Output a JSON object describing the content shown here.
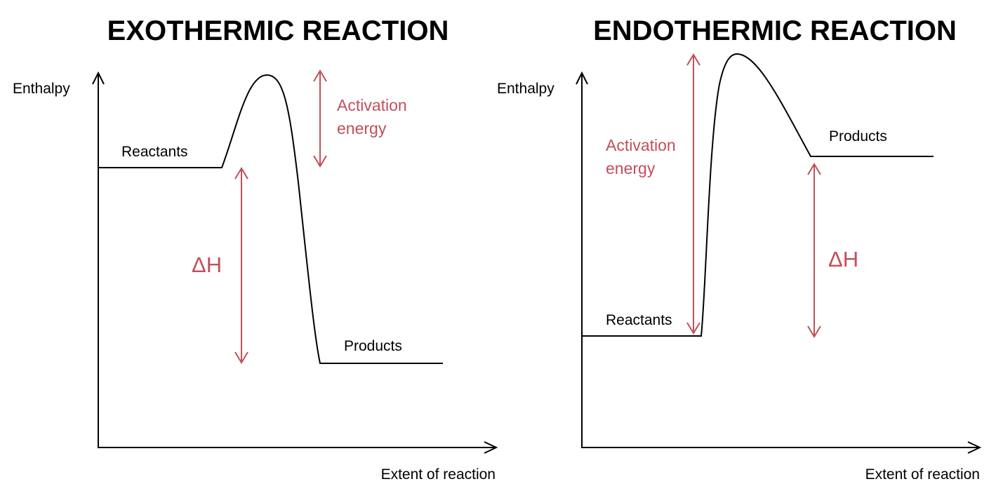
{
  "colors": {
    "accent": "#c0505a",
    "ink": "#000000",
    "background": "#ffffff"
  },
  "exothermic": {
    "title": "EXOTHERMIC REACTION",
    "y_axis_label": "Enthalpy",
    "x_axis_label": "Extent of reaction",
    "reactants_label": "Reactants",
    "products_label": "Products",
    "activation_label_line1": "Activation",
    "activation_label_line2": "energy",
    "delta_h_label": "ΔH"
  },
  "endothermic": {
    "title": "ENDOTHERMIC REACTION",
    "y_axis_label": "Enthalpy",
    "x_axis_label": "Extent of reaction",
    "reactants_label": "Reactants",
    "products_label": "Products",
    "activation_label_line1": "Activation",
    "activation_label_line2": "energy",
    "delta_h_label": "ΔH"
  }
}
